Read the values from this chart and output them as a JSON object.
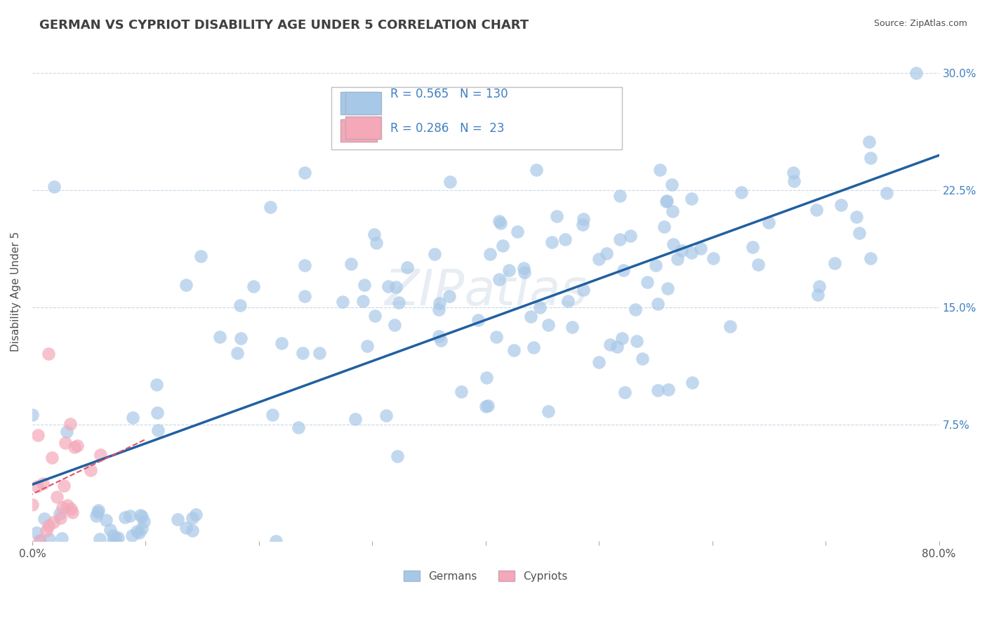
{
  "title": "GERMAN VS CYPRIOT DISABILITY AGE UNDER 5 CORRELATION CHART",
  "source": "Source: ZipAtlas.com",
  "ylabel": "Disability Age Under 5",
  "xlabel": "",
  "xlim": [
    0.0,
    0.8
  ],
  "ylim": [
    0.0,
    0.32
  ],
  "xticks": [
    0.0,
    0.1,
    0.2,
    0.3,
    0.4,
    0.5,
    0.6,
    0.7,
    0.8
  ],
  "xticklabels": [
    "0.0%",
    "",
    "",
    "",
    "",
    "",
    "",
    "",
    "80.0%"
  ],
  "ytick_positions": [
    0.0,
    0.075,
    0.15,
    0.225,
    0.3
  ],
  "ytick_labels": [
    "",
    "7.5%",
    "15.0%",
    "22.5%",
    "30.0%"
  ],
  "german_R": 0.565,
  "german_N": 130,
  "cypriot_R": 0.286,
  "cypriot_N": 23,
  "german_color": "#a8c8e8",
  "german_line_color": "#2060a0",
  "cypriot_color": "#f4a8b8",
  "cypriot_line_color": "#e05070",
  "watermark": "ZIPatlas",
  "grid_color": "#c8d8e8",
  "title_color": "#404040",
  "legend_text_color": "#4080c0",
  "background_color": "#ffffff"
}
